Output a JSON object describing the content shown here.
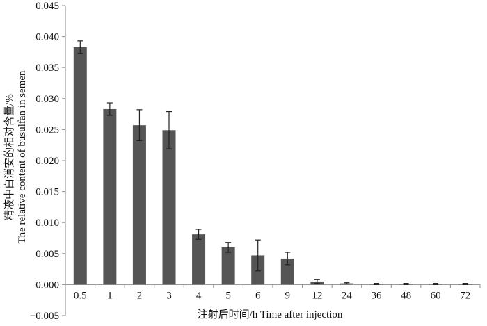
{
  "chart_data": {
    "type": "bar",
    "categories": [
      "0.5",
      "1",
      "2",
      "3",
      "4",
      "5",
      "6",
      "9",
      "12",
      "24",
      "36",
      "48",
      "60",
      "72"
    ],
    "values": [
      0.0383,
      0.0283,
      0.0257,
      0.0249,
      0.0081,
      0.006,
      0.0047,
      0.0042,
      0.0005,
      0.0002,
      0.0001,
      0.0001,
      0.0001,
      0.0001
    ],
    "error_bars": [
      0.001,
      0.001,
      0.0025,
      0.003,
      0.0008,
      0.0008,
      0.0025,
      0.001,
      0.0003,
      0.0001,
      0.0001,
      0.0001,
      0.0001,
      0.0001
    ],
    "title": "",
    "xlabel": "注射后时间/h Time after injection",
    "ylabel_cn": "精液中白消安的相对含量/%",
    "ylabel_en": "The relative content of busulfan in semen",
    "ylim": [
      -0.005,
      0.045
    ],
    "yticks": [
      "0.045",
      "0.040",
      "0.035",
      "0.030",
      "0.025",
      "0.020",
      "0.015",
      "0.010",
      "0.005",
      "0.000",
      "−0.005"
    ],
    "ytick_values": [
      0.045,
      0.04,
      0.035,
      0.03,
      0.025,
      0.02,
      0.015,
      0.01,
      0.005,
      0.0,
      -0.005
    ],
    "grid": false,
    "legend": "none",
    "bar_color": "#555555",
    "axis_color": "#8a8a8a"
  }
}
